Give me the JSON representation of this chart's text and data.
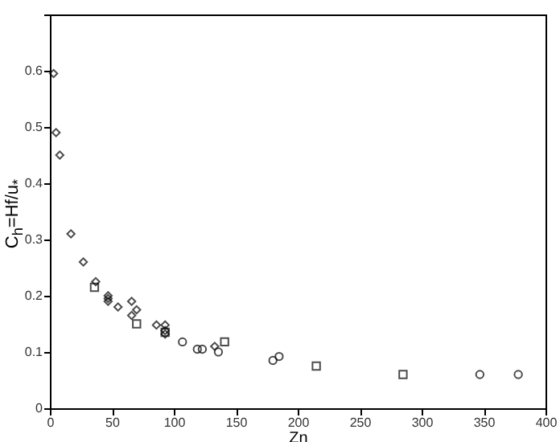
{
  "chart_data": {
    "type": "scatter",
    "xlabel": "Zn",
    "ylabel": "C$_{h}$=Hf/u$_{*}$",
    "xlim": [
      0,
      400
    ],
    "xticks": [
      0,
      50,
      100,
      150,
      200,
      250,
      300,
      350,
      400
    ],
    "ylim": [
      0,
      0.7
    ],
    "yticks": [
      0,
      0.1,
      0.2,
      0.3,
      0.4,
      0.5,
      0.6,
      {
        "value": 0.7,
        "label": null
      }
    ],
    "grid": false,
    "series": [
      {
        "color": "#000000",
        "marker": "diamond",
        "x": [
          3,
          5,
          8,
          17,
          27,
          37,
          47,
          47,
          47,
          55,
          66,
          66,
          70,
          86,
          93,
          93,
          93,
          133
        ],
        "values": [
          0.595,
          0.49,
          0.45,
          0.31,
          0.26,
          0.225,
          0.2,
          0.195,
          0.19,
          0.18,
          0.19,
          0.165,
          0.175,
          0.148,
          0.148,
          0.138,
          0.132,
          0.11
        ]
      },
      {
        "color": "#000000",
        "marker": "square",
        "x": [
          36,
          70,
          93,
          141,
          215,
          285
        ],
        "values": [
          0.215,
          0.15,
          0.135,
          0.118,
          0.075,
          0.06
        ]
      },
      {
        "color": "#000000",
        "marker": "circle",
        "x": [
          107,
          119,
          123,
          136,
          180,
          185,
          347,
          378
        ],
        "values": [
          0.118,
          0.105,
          0.105,
          0.1,
          0.085,
          0.092,
          0.06,
          0.06
        ]
      }
    ]
  }
}
